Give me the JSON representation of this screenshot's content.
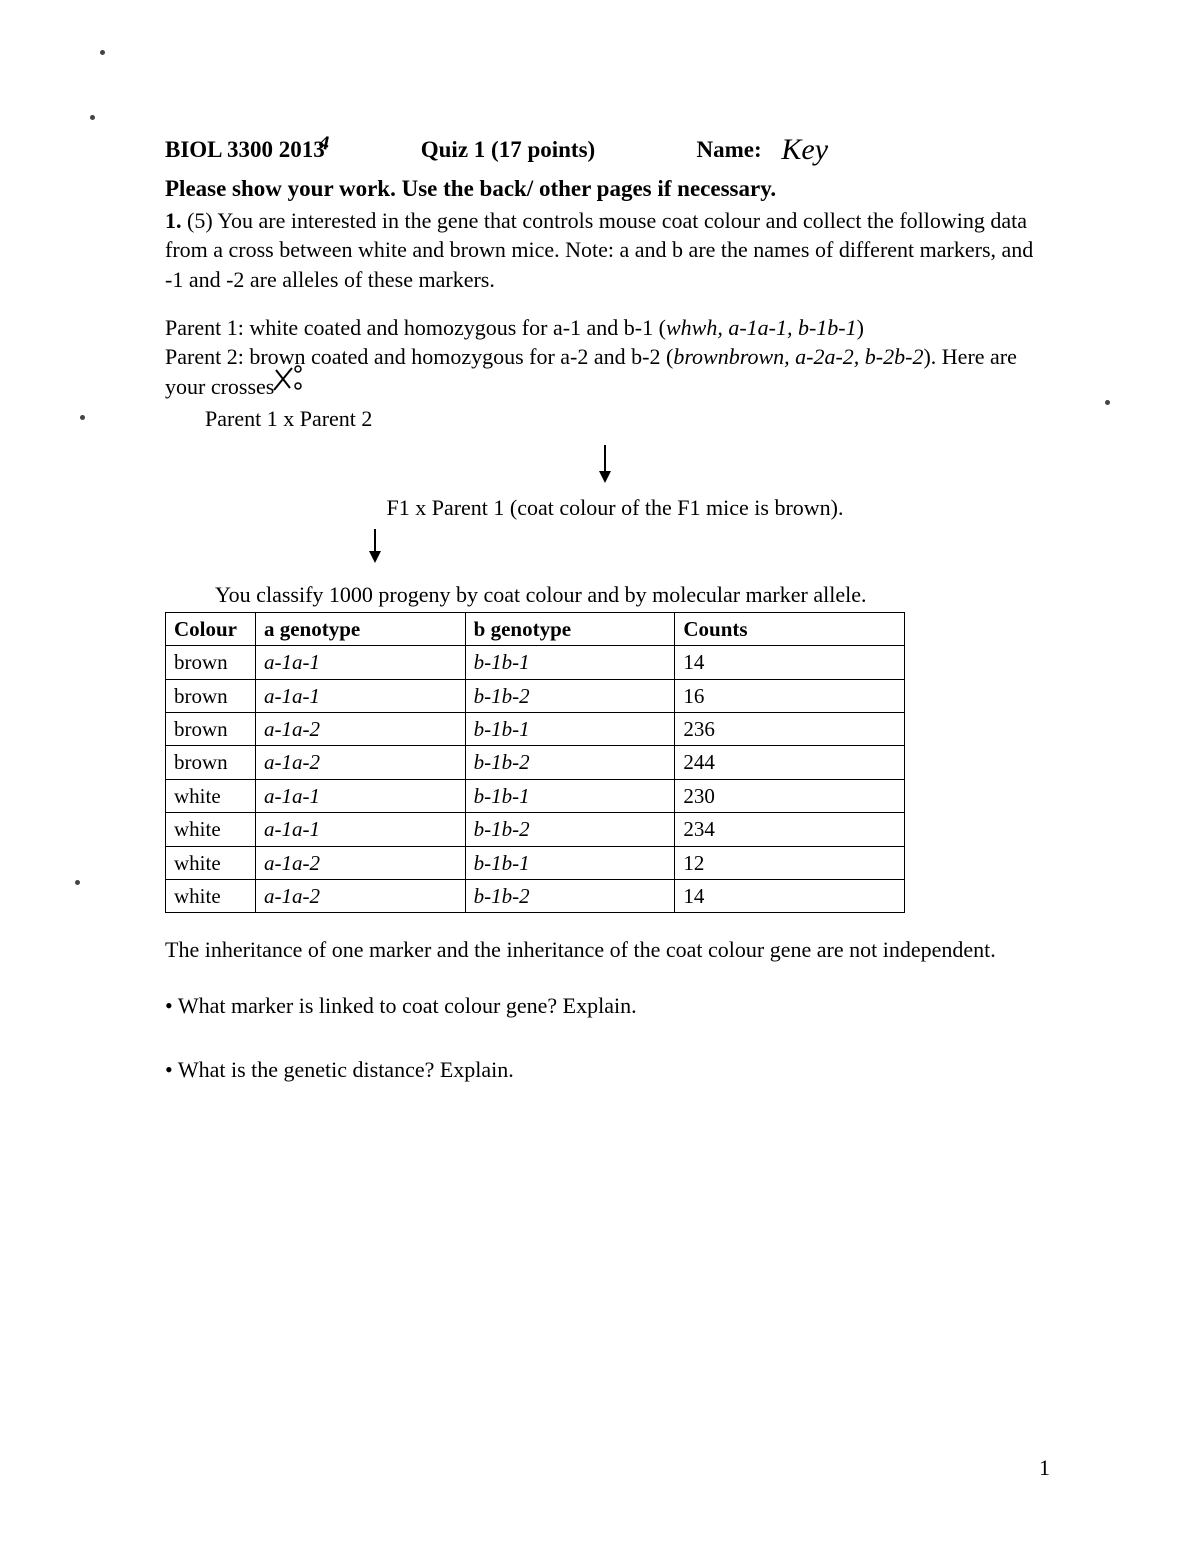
{
  "header": {
    "course": "BIOL 3300 201",
    "year_overlay": "4",
    "quiz": "Quiz 1 (17 points)",
    "name_label": "Name:",
    "name_value": "Key"
  },
  "instructions": "Please show your work. Use the back/ other pages if necessary.",
  "q1": {
    "num": "1.",
    "pts": "(5)",
    "text1": "You are interested in the gene that controls mouse coat colour and collect the following data from a cross between white and brown mice. Note: a and b are the names of different markers, and -1 and -2 are alleles of these markers.",
    "parent1_a": "Parent 1: white coated and homozygous for a-1 and b-1 (",
    "parent1_i": "whwh, a-1a-1, b-1b-1",
    "parent1_b": ")",
    "parent2_a": "Parent 2: brown coated and homozygous for a-2 and b-2 (",
    "parent2_i": "brownbrown, a-2a-2, b-2b-2",
    "parent2_b": "). Here are your crosses",
    "cross1": "Parent 1  x Parent 2",
    "f1_line": "F1 x Parent 1  (coat colour of the F1 mice is brown).",
    "classify": "You classify 1000 progeny by coat colour and by molecular marker allele."
  },
  "table": {
    "headers": [
      "Colour",
      "a genotype",
      "b genotype",
      "Counts"
    ],
    "col_widths": [
      "90px",
      "210px",
      "210px",
      "230px"
    ],
    "rows": [
      [
        "brown",
        "a-1a-1",
        "b-1b-1",
        "14"
      ],
      [
        "brown",
        "a-1a-1",
        "b-1b-2",
        "16"
      ],
      [
        "brown",
        "a-1a-2",
        "b-1b-1",
        "236"
      ],
      [
        "brown",
        "a-1a-2",
        "b-1b-2",
        "244"
      ],
      [
        "white",
        "a-1a-1",
        "b-1b-1",
        "230"
      ],
      [
        "white",
        "a-1a-1",
        "b-1b-2",
        "234"
      ],
      [
        "white",
        "a-1a-2",
        "b-1b-1",
        "12"
      ],
      [
        "white",
        "a-1a-2",
        "b-1b-2",
        "14"
      ]
    ]
  },
  "note": "The inheritance of one marker and the inheritance of the coat colour gene are not independent.",
  "bullets": [
    "What marker is linked to coat colour gene? Explain.",
    "What is the genetic distance? Explain."
  ],
  "page_num": "1",
  "colors": {
    "text": "#000000",
    "bg": "#ffffff",
    "border": "#000000"
  }
}
